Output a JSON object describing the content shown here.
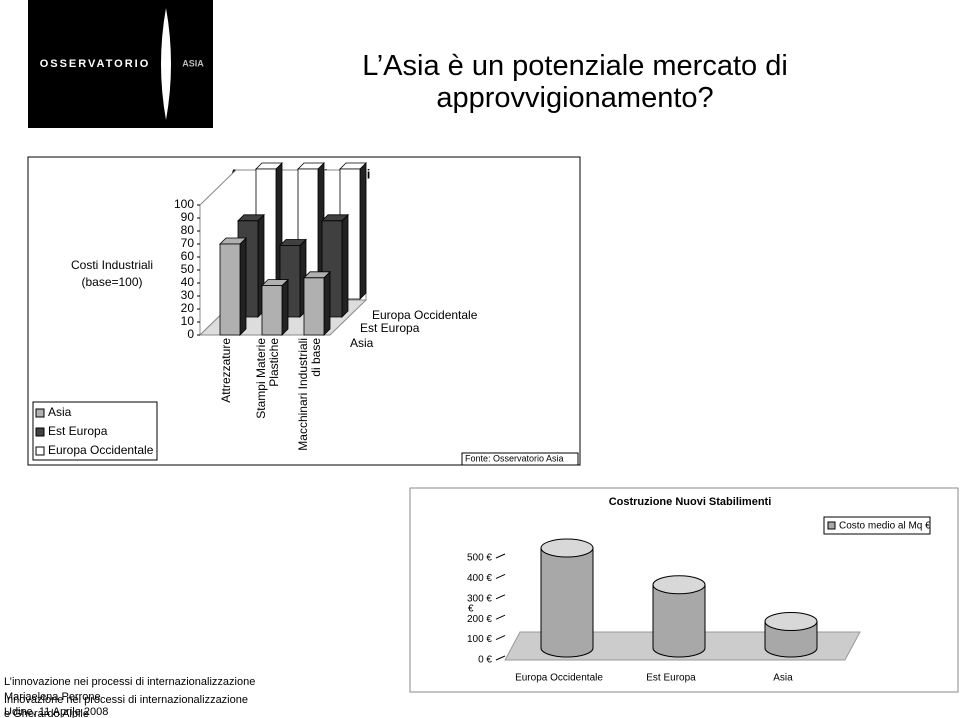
{
  "logo": {
    "name": "OSSERVATORIO",
    "region": "ASIA"
  },
  "slide_title": "L’Asia è un potenziale mercato di approvvigionamento?",
  "chart_data": [
    {
      "type": "bar",
      "title": "Attrezzature Industriali",
      "y_label": "Costi Industriali (base=100)",
      "categories": [
        "Attrezzature",
        "Stampi Materie Plastiche",
        "Macchinari Industriali di base"
      ],
      "series": [
        {
          "name": "Asia",
          "color": "#b0b0b0",
          "values": [
            70,
            38,
            44
          ]
        },
        {
          "name": "Est Europa",
          "color": "#404040",
          "values": [
            74,
            55,
            74
          ]
        },
        {
          "name": "Europa Occidentale",
          "color": "#ffffff",
          "values": [
            100,
            100,
            100
          ]
        }
      ],
      "ylim": [
        0,
        100
      ],
      "yticks": [
        0,
        10,
        20,
        30,
        40,
        50,
        60,
        70,
        80,
        90,
        100
      ],
      "legend": "bottom-left",
      "source": "Fonte: Osservatorio Asia"
    },
    {
      "type": "bar",
      "shape": "cylinder",
      "title": "Costruzione Nuovi Stabilimenti",
      "y_label": "€",
      "categories": [
        "Europa Occidentale",
        "Est Europa",
        "Asia"
      ],
      "series": [
        {
          "name": "Costo medio al Mq €",
          "color": "#a8a8a8",
          "values": [
            490,
            310,
            130
          ]
        }
      ],
      "ylim": [
        0,
        500
      ],
      "yticks": [
        {
          "value": 0,
          "label": "0 €"
        },
        {
          "value": 100,
          "label": "100 €"
        },
        {
          "value": 200,
          "label": "200 €"
        },
        {
          "value": 300,
          "label": "300 €"
        },
        {
          "value": 400,
          "label": "400 €"
        },
        {
          "value": 500,
          "label": "500 €"
        }
      ],
      "legend": "top-right"
    }
  ],
  "footer": [
    "L’innovazione nei processi di internazionalizzazione",
    "Mariaelena Perrone",
    "Innovazione nei processi di internazionalizzazione",
    "Udine, 11 Aprile 2008",
    "e Gherardo Alpile"
  ]
}
